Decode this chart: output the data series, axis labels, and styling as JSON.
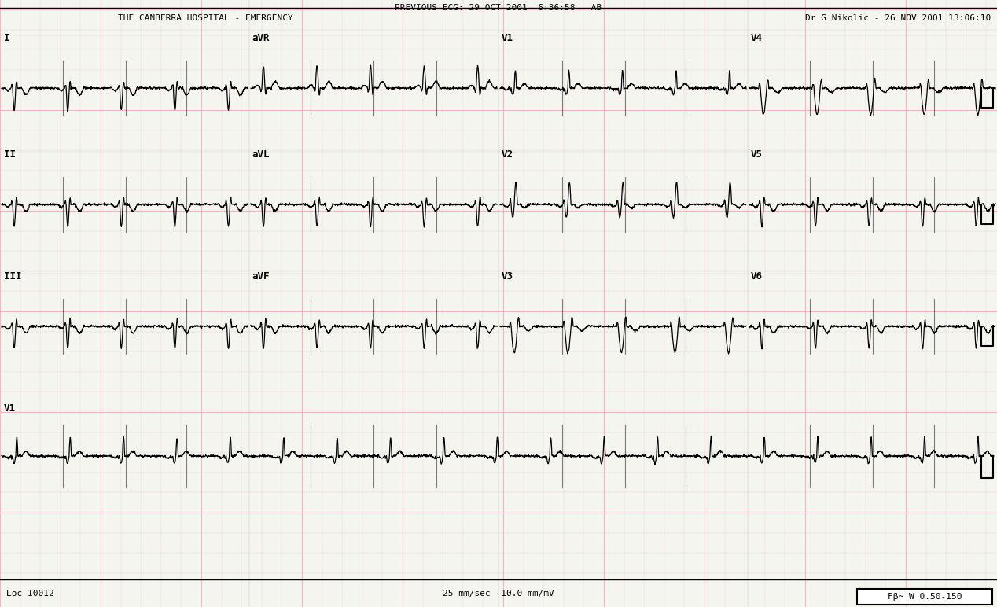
{
  "bg_color": "#f5f5f0",
  "grid_color": "#e8b4b8",
  "grid_minor_color": "#f0d0d0",
  "ecg_color": "#000000",
  "title_line1": "PREVIOUS ECG: 29 OCT 2001  6:36:58 - AB",
  "title_line2": "THE CANBERRA HOSPITAL - EMERGENCY",
  "title_right": "Dr G Nikolic - 26 NOV 2001 13:06:10",
  "footer_left": "Loc 10012",
  "footer_center": "25 mm/sec  10.0 mm/mV",
  "footer_right": "Fβ~ W 0.50-150",
  "lead_labels": [
    "I",
    "aVR",
    "V1",
    "V4",
    "II",
    "aVL",
    "V2",
    "V5",
    "III",
    "aVF",
    "V3",
    "V6",
    "V1"
  ],
  "fig_width": 12.68,
  "fig_height": 7.72,
  "dpi": 100
}
